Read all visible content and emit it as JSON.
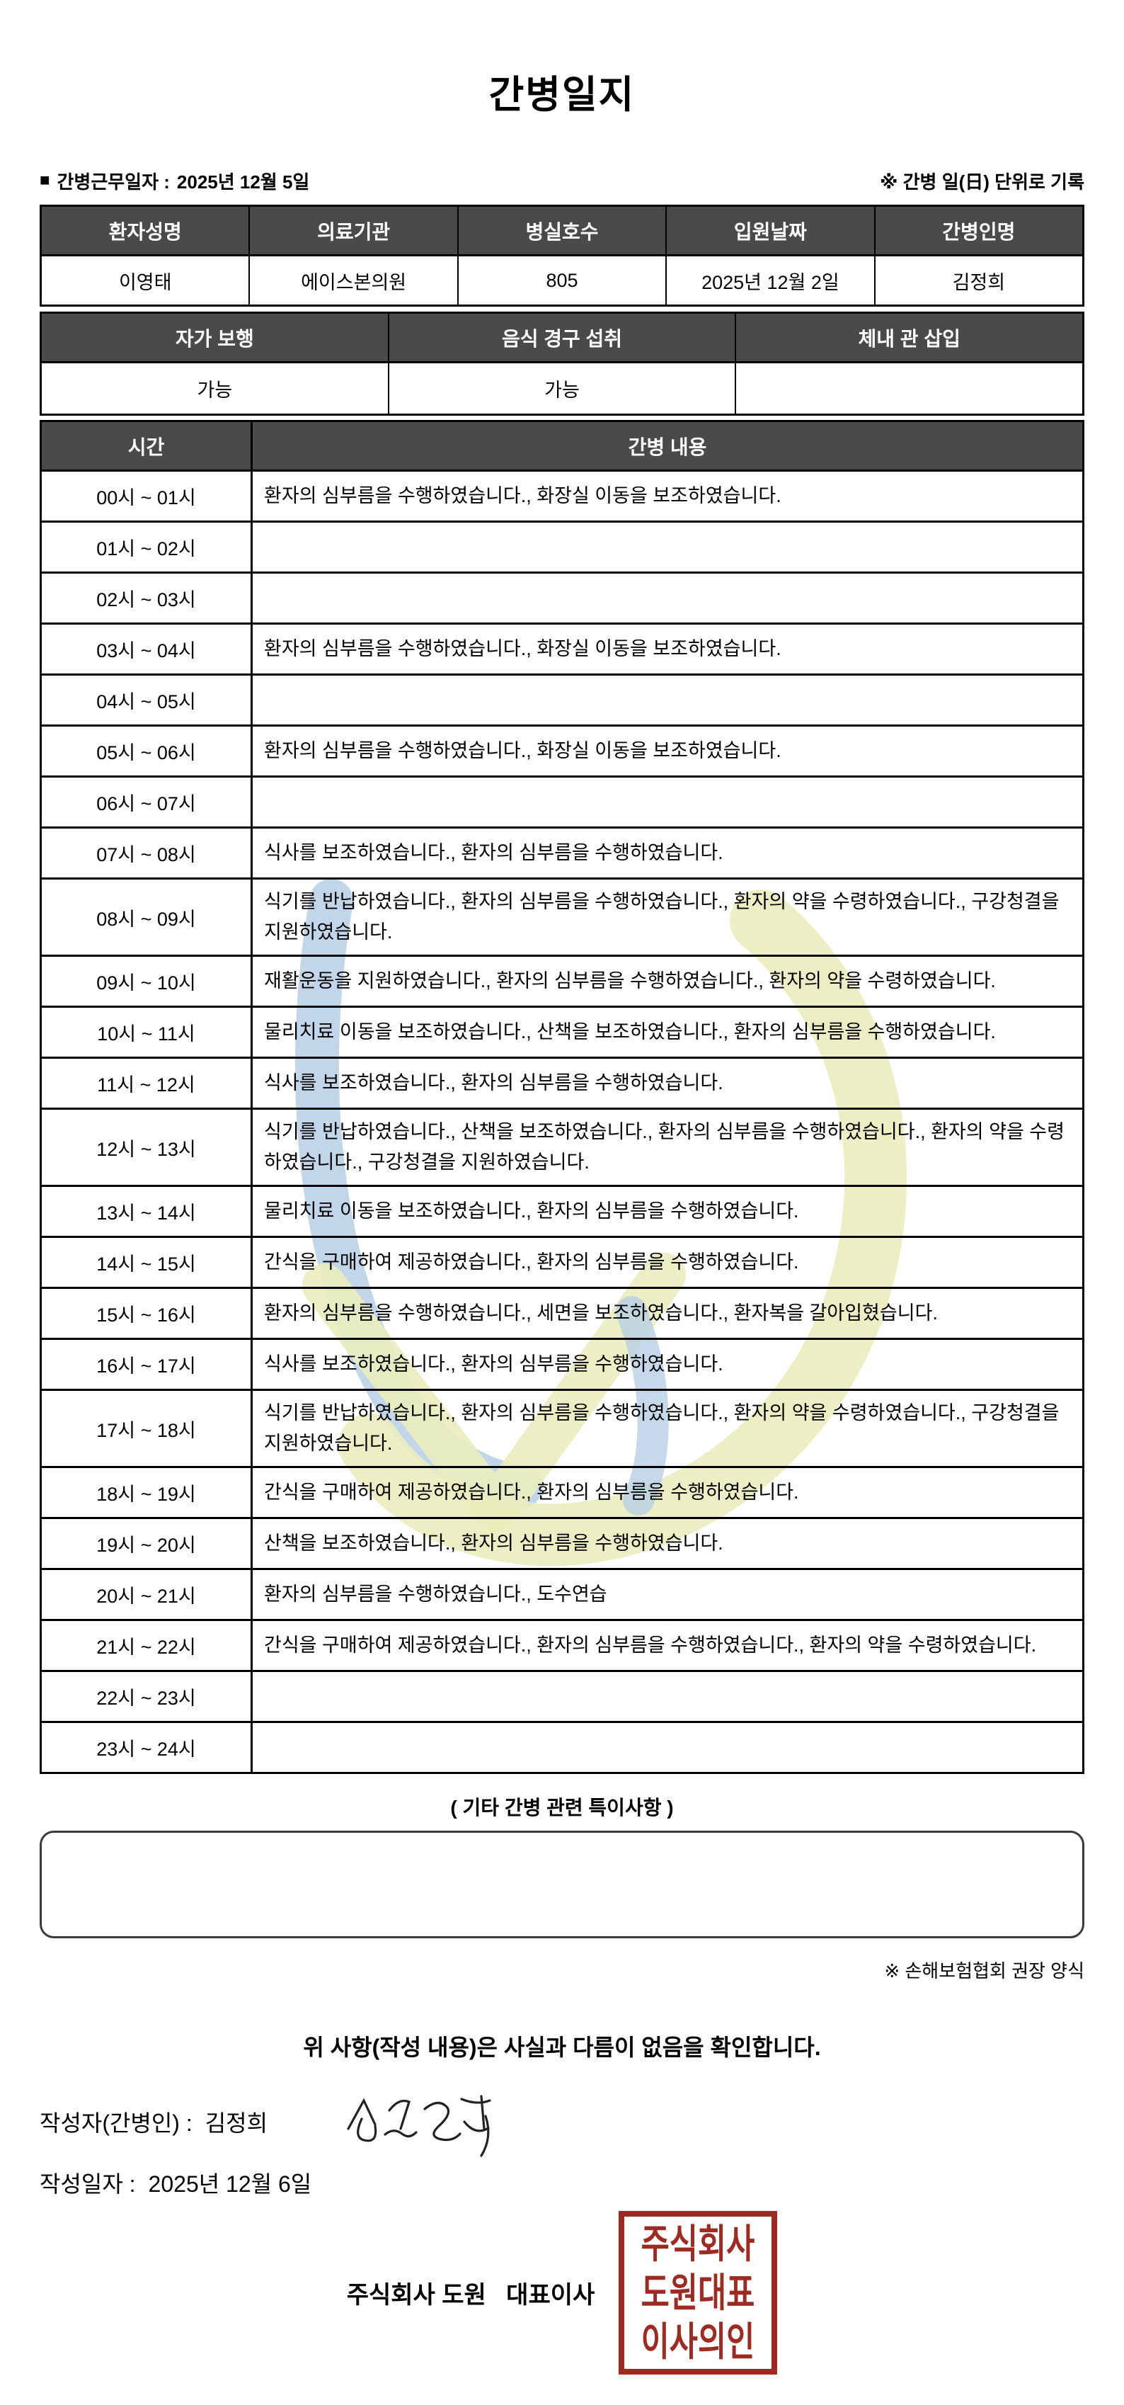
{
  "title": "간병일지",
  "meta": {
    "bullet": "■",
    "work_date_label": "간병근무일자 :",
    "work_date": "2025년 12월 5일",
    "unit_note": "※ 간병 일(日) 단위로 기록"
  },
  "patient_table": {
    "headers": [
      "환자성명",
      "의료기관",
      "병실호수",
      "입원날짜",
      "간병인명"
    ],
    "values": [
      "이영태",
      "에이스본의원",
      "805",
      "2025년 12월 2일",
      "김정희"
    ]
  },
  "status_table": {
    "headers": [
      "자가 보행",
      "음식 경구 섭취",
      "체내 관 삽입"
    ],
    "values": [
      "가능",
      "가능",
      ""
    ]
  },
  "log_table": {
    "time_header": "시간",
    "content_header": "간병 내용",
    "rows": [
      {
        "time": "00시 ~ 01시",
        "content": "환자의 심부름을 수행하였습니다., 화장실 이동을 보조하였습니다."
      },
      {
        "time": "01시 ~ 02시",
        "content": ""
      },
      {
        "time": "02시 ~ 03시",
        "content": ""
      },
      {
        "time": "03시 ~ 04시",
        "content": "환자의 심부름을 수행하였습니다., 화장실 이동을 보조하였습니다."
      },
      {
        "time": "04시 ~ 05시",
        "content": ""
      },
      {
        "time": "05시 ~ 06시",
        "content": "환자의 심부름을 수행하였습니다., 화장실 이동을 보조하였습니다."
      },
      {
        "time": "06시 ~ 07시",
        "content": ""
      },
      {
        "time": "07시 ~ 08시",
        "content": "식사를 보조하였습니다., 환자의 심부름을 수행하였습니다."
      },
      {
        "time": "08시 ~ 09시",
        "content": "식기를 반납하였습니다., 환자의 심부름을 수행하였습니다., 환자의 약을 수령하였습니다., 구강청결을 지원하였습니다."
      },
      {
        "time": "09시 ~ 10시",
        "content": "재활운동을 지원하였습니다., 환자의 심부름을 수행하였습니다., 환자의 약을 수령하였습니다."
      },
      {
        "time": "10시 ~ 11시",
        "content": "물리치료 이동을 보조하였습니다., 산책을 보조하였습니다., 환자의 심부름을 수행하였습니다."
      },
      {
        "time": "11시 ~ 12시",
        "content": "식사를 보조하였습니다., 환자의 심부름을 수행하였습니다."
      },
      {
        "time": "12시 ~ 13시",
        "content": "식기를 반납하였습니다., 산책을 보조하였습니다., 환자의 심부름을 수행하였습니다., 환자의 약을 수령하였습니다., 구강청결을 지원하였습니다."
      },
      {
        "time": "13시 ~ 14시",
        "content": "물리치료 이동을 보조하였습니다., 환자의 심부름을 수행하였습니다."
      },
      {
        "time": "14시 ~ 15시",
        "content": "간식을 구매하여 제공하였습니다., 환자의 심부름을 수행하였습니다."
      },
      {
        "time": "15시 ~ 16시",
        "content": "환자의 심부름을 수행하였습니다., 세면을 보조하였습니다., 환자복을 갈아입혔습니다."
      },
      {
        "time": "16시 ~ 17시",
        "content": "식사를 보조하였습니다., 환자의 심부름을 수행하였습니다."
      },
      {
        "time": "17시 ~ 18시",
        "content": "식기를 반납하였습니다., 환자의 심부름을 수행하였습니다., 환자의 약을 수령하였습니다., 구강청결을 지원하였습니다."
      },
      {
        "time": "18시 ~ 19시",
        "content": "간식을 구매하여 제공하였습니다., 환자의 심부름을 수행하였습니다."
      },
      {
        "time": "19시 ~ 20시",
        "content": "산책을 보조하였습니다., 환자의 심부름을 수행하였습니다."
      },
      {
        "time": "20시 ~ 21시",
        "content": "환자의 심부름을 수행하였습니다., 도수연습"
      },
      {
        "time": "21시 ~ 22시",
        "content": "간식을 구매하여 제공하였습니다., 환자의 심부름을 수행하였습니다., 환자의 약을 수령하였습니다."
      },
      {
        "time": "22시 ~ 23시",
        "content": ""
      },
      {
        "time": "23시 ~ 24시",
        "content": ""
      }
    ]
  },
  "extra_section": {
    "title": "( 기타 간병 관련 특이사항 )",
    "content": "",
    "form_note": "※ 손해보험협회 권장 양식"
  },
  "footer": {
    "confirmation": "위 사항(작성 내용)은 사실과 다름이 없음을 확인합니다.",
    "writer_label": "작성자(간병인) :",
    "writer_name": "김정희",
    "date_label": "작성일자 :",
    "date_value": "2025년 12월 6일",
    "company_line": "주식회사 도원   대표이사",
    "stamp_lines": [
      "주식회사",
      "도원대표",
      "이사의인"
    ]
  },
  "colors": {
    "header_bg": "#4a4a4a",
    "stamp_red": "#9e2b22",
    "watermark_yellow": "#eaedbd",
    "watermark_blue": "#b7cfe5"
  }
}
